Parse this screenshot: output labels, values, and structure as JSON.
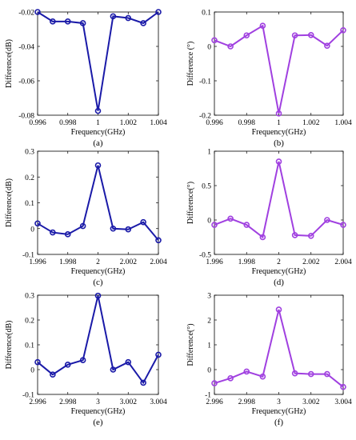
{
  "colors": {
    "blue_series": "#1a1aa8",
    "purple_series": "#a040e0",
    "axis": "#000000"
  },
  "chart_data": [
    {
      "type": "line",
      "panel_label": "(a)",
      "xlabel": "Frequency(GHz)",
      "ylabel": "Difference(dB)",
      "xlim": [
        0.996,
        1.004
      ],
      "ylim": [
        -0.08,
        -0.02
      ],
      "xticks": [
        0.996,
        0.998,
        1.0,
        1.002,
        1.004
      ],
      "xtick_labels": [
        "0.996",
        "0.998",
        "1",
        "1.002",
        "1.004"
      ],
      "yticks": [
        -0.08,
        -0.06,
        -0.04,
        -0.02
      ],
      "ytick_labels": [
        "-0.08",
        "-0.06",
        "-0.04",
        "-0.02"
      ],
      "color": "#1a1aa8",
      "x": [
        0.996,
        0.997,
        0.998,
        0.999,
        1.0,
        1.001,
        1.002,
        1.003,
        1.004
      ],
      "y": [
        -0.02,
        -0.0255,
        -0.0255,
        -0.0265,
        -0.0775,
        -0.0225,
        -0.0235,
        -0.0265,
        -0.02
      ]
    },
    {
      "type": "line",
      "panel_label": "(b)",
      "xlabel": "Frequency(GHz)",
      "ylabel": "Difference (°)",
      "xlim": [
        0.996,
        1.004
      ],
      "ylim": [
        -0.2,
        0.1
      ],
      "xticks": [
        0.996,
        0.998,
        1.0,
        1.002,
        1.004
      ],
      "xtick_labels": [
        "0.996",
        "0.998",
        "1",
        "1.002",
        "1.004"
      ],
      "yticks": [
        -0.2,
        -0.1,
        0,
        0.1
      ],
      "ytick_labels": [
        "-0.2",
        "-0.1",
        "0",
        "0.1"
      ],
      "color": "#a040e0",
      "x": [
        0.996,
        0.997,
        0.998,
        0.999,
        1.0,
        1.001,
        1.002,
        1.003,
        1.004
      ],
      "y": [
        0.018,
        0.0,
        0.032,
        0.06,
        -0.195,
        0.032,
        0.033,
        0.002,
        0.047
      ]
    },
    {
      "type": "line",
      "panel_label": "(c)",
      "xlabel": "Frequency(GHz)",
      "ylabel": "Difference(dB)",
      "xlim": [
        1.996,
        2.004
      ],
      "ylim": [
        -0.1,
        0.3
      ],
      "xticks": [
        1.996,
        1.998,
        2.0,
        2.002,
        2.004
      ],
      "xtick_labels": [
        "1.996",
        "1.998",
        "2",
        "2.002",
        "2.004"
      ],
      "yticks": [
        -0.1,
        0,
        0.1,
        0.2,
        0.3
      ],
      "ytick_labels": [
        "-0.1",
        "0",
        "0.1",
        "0.2",
        "0.3"
      ],
      "color": "#1a1aa8",
      "x": [
        1.996,
        1.997,
        1.998,
        1.999,
        2.0,
        2.001,
        2.002,
        2.003,
        2.004
      ],
      "y": [
        0.02,
        -0.015,
        -0.022,
        0.01,
        0.245,
        0.0,
        -0.003,
        0.025,
        -0.045
      ]
    },
    {
      "type": "line",
      "panel_label": "(d)",
      "xlabel": "Frequency(GHz)",
      "ylabel": "Difference(°)",
      "xlim": [
        1.996,
        2.004
      ],
      "ylim": [
        -0.5,
        1.0
      ],
      "xticks": [
        1.996,
        1.998,
        2.0,
        2.002,
        2.004
      ],
      "xtick_labels": [
        "1.996",
        "1.998",
        "2",
        "2.002",
        "2.004"
      ],
      "yticks": [
        -0.5,
        0,
        0.5,
        1.0
      ],
      "ytick_labels": [
        "-0.5",
        "0",
        "0.5",
        "1"
      ],
      "color": "#a040e0",
      "x": [
        1.996,
        1.997,
        1.998,
        1.999,
        2.0,
        2.001,
        2.002,
        2.003,
        2.004
      ],
      "y": [
        -0.07,
        0.02,
        -0.07,
        -0.25,
        0.85,
        -0.22,
        -0.23,
        0.0,
        -0.07
      ]
    },
    {
      "type": "line",
      "panel_label": "(e)",
      "xlabel": "Frequency(GHz)",
      "ylabel": "Difference(dB)",
      "xlim": [
        2.996,
        3.004
      ],
      "ylim": [
        -0.1,
        0.3
      ],
      "xticks": [
        2.996,
        2.998,
        3.0,
        3.002,
        3.004
      ],
      "xtick_labels": [
        "2.996",
        "2.998",
        "3",
        "3.002",
        "3.004"
      ],
      "yticks": [
        -0.1,
        0,
        0.1,
        0.2,
        0.3
      ],
      "ytick_labels": [
        "-0.1",
        "0",
        "0.1",
        "0.2",
        "0.3"
      ],
      "color": "#1a1aa8",
      "x": [
        2.996,
        2.997,
        2.998,
        2.999,
        3.0,
        3.001,
        3.002,
        3.003,
        3.004
      ],
      "y": [
        0.03,
        -0.02,
        0.02,
        0.038,
        0.298,
        0.0,
        0.03,
        -0.053,
        0.06
      ]
    },
    {
      "type": "line",
      "panel_label": "(f)",
      "xlabel": "Frequency(GHz)",
      "ylabel": "Difference(°)",
      "xlim": [
        2.996,
        3.004
      ],
      "ylim": [
        -1,
        3
      ],
      "xticks": [
        2.996,
        2.998,
        3.0,
        3.002,
        3.004
      ],
      "xtick_labels": [
        "2.996",
        "2.998",
        "3",
        "3.002",
        "3.004"
      ],
      "yticks": [
        -1,
        0,
        1,
        2,
        3
      ],
      "ytick_labels": [
        "-1",
        "0",
        "1",
        "2",
        "3"
      ],
      "color": "#a040e0",
      "x": [
        2.996,
        2.997,
        2.998,
        2.999,
        3.0,
        3.001,
        3.002,
        3.003,
        3.004
      ],
      "y": [
        -0.55,
        -0.35,
        -0.08,
        -0.28,
        2.42,
        -0.15,
        -0.18,
        -0.18,
        -0.7
      ]
    }
  ]
}
